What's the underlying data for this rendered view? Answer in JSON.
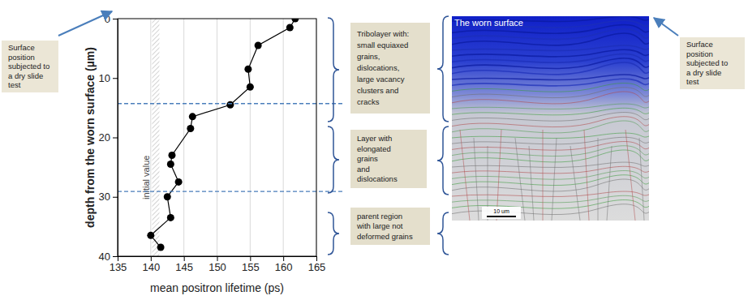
{
  "chart_data": {
    "type": "line",
    "x": [
      161.8,
      161.0,
      156.2,
      154.7,
      155.0,
      152.0,
      146.3,
      146.0,
      143.2,
      143.0,
      144.2,
      142.5,
      143.0,
      140.0,
      141.5
    ],
    "values": [
      0,
      1.5,
      4.5,
      8.5,
      11.5,
      14.5,
      16.5,
      18.5,
      23,
      24.5,
      27.5,
      30,
      33.5,
      36.5,
      38.5
    ],
    "xlabel": "mean positron lifetime (ps)",
    "ylabel": "depth from the worn surface (µm)",
    "xlim": [
      135,
      165
    ],
    "xticks": [
      135,
      140,
      145,
      150,
      155,
      160,
      165
    ],
    "ylim": [
      40,
      0
    ],
    "yticks": [
      0,
      10,
      20,
      30,
      40
    ],
    "grid": true,
    "color": "#000000",
    "marker": "circle",
    "line_style": "solid",
    "bands": [
      {
        "label": "initial value",
        "range": [
          140.2,
          141.3
        ]
      }
    ],
    "boundaries": [
      14.3,
      29.1
    ],
    "annotations": [
      {
        "lines": [
          "Surface",
          "position",
          "subjected to",
          "a dry slide",
          "test"
        ]
      },
      {
        "lines": [
          "Tribolayer with:",
          "small equiaxed",
          "grains,",
          "dislocations,",
          "large vacancy",
          "clusters and",
          "cracks"
        ]
      },
      {
        "lines": [
          "Layer with",
          "elongated",
          "grains",
          "and",
          "dislocations"
        ]
      },
      {
        "lines": [
          "parent region",
          "with large not",
          "deformed grains"
        ]
      },
      {
        "lines": [
          "Surface",
          "position",
          "subjected to",
          "a dry slide",
          "test"
        ]
      }
    ],
    "micrograph": {
      "title": "The worn surface",
      "scale_bar": "10 um"
    }
  }
}
